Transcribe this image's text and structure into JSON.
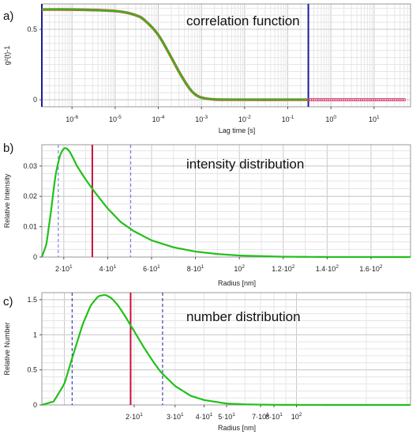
{
  "colors": {
    "curve": "#22c01a",
    "marker_red": "#c8103c",
    "marker_blue": "#1b1b9a",
    "dashed_blue": "#6a6ae0",
    "grid": "#d9d9d9",
    "tail_points": "#e0407a"
  },
  "chart_data": [
    {
      "panel_label": "a)",
      "type": "scatter",
      "title": "correlation function",
      "xlabel": "Lag time [s]",
      "ylabel": "g²(t)-1",
      "x_scale": "log",
      "xlim": [
        2e-07,
        70
      ],
      "ylim": [
        -0.05,
        0.68
      ],
      "x_ticks": [
        {
          "value": 1e-06,
          "label": "10",
          "exp": "-6"
        },
        {
          "value": 1e-05,
          "label": "10",
          "exp": "-5"
        },
        {
          "value": 0.0001,
          "label": "10",
          "exp": "-4"
        },
        {
          "value": 0.001,
          "label": "10",
          "exp": "-3"
        },
        {
          "value": 0.01,
          "label": "10",
          "exp": "-2"
        },
        {
          "value": 0.1,
          "label": "10",
          "exp": "-1"
        },
        {
          "value": 1,
          "label": "10",
          "exp": "0"
        },
        {
          "value": 10,
          "label": "10",
          "exp": "1"
        }
      ],
      "y_ticks": [
        {
          "value": 0,
          "label": "0"
        },
        {
          "value": 0.5,
          "label": "0.5"
        }
      ],
      "series": [
        {
          "x": [
            2e-07,
            1e-06,
            1e-05,
            3e-05,
            5e-05,
            0.0001,
            0.0002,
            0.0003,
            0.0005,
            0.0007,
            0.001,
            0.002,
            0.01,
            0.1,
            0.3
          ],
          "values": [
            0.64,
            0.64,
            0.63,
            0.6,
            0.56,
            0.46,
            0.3,
            0.2,
            0.09,
            0.04,
            0.015,
            0.002,
            0,
            0,
            0
          ]
        },
        {
          "x": [
            0.3,
            1,
            3,
            10,
            50
          ],
          "values": [
            0,
            0,
            0,
            0,
            0
          ]
        }
      ],
      "vertical_markers": [
        {
          "x": 2e-07,
          "color": "marker_blue",
          "style": "solid"
        },
        {
          "x": 0.3,
          "color": "marker_blue",
          "style": "solid"
        }
      ],
      "grid": true
    },
    {
      "panel_label": "b)",
      "type": "line",
      "title": "intensity distribution",
      "xlabel": "Radius [nm]",
      "ylabel": "Relative Intensity",
      "x_scale": "linear",
      "xlim": [
        10,
        178
      ],
      "ylim": [
        0,
        0.037
      ],
      "x_ticks": [
        {
          "value": 20,
          "label": "2·10",
          "exp": "1"
        },
        {
          "value": 40,
          "label": "4·10",
          "exp": "1"
        },
        {
          "value": 60,
          "label": "6·10",
          "exp": "1"
        },
        {
          "value": 80,
          "label": "8·10",
          "exp": "1"
        },
        {
          "value": 100,
          "label": "10",
          "exp": "2"
        },
        {
          "value": 120,
          "label": "1.2·10",
          "exp": "2"
        },
        {
          "value": 140,
          "label": "1.4·10",
          "exp": "2"
        },
        {
          "value": 160,
          "label": "1.6·10",
          "exp": "2"
        }
      ],
      "y_ticks": [
        {
          "value": 0,
          "label": "0"
        },
        {
          "value": 0.01,
          "label": "0.01"
        },
        {
          "value": 0.02,
          "label": "0.02"
        },
        {
          "value": 0.03,
          "label": "0.03"
        }
      ],
      "series": [
        {
          "x": [
            10,
            12,
            14,
            16,
            18,
            20,
            22,
            24,
            26,
            30,
            34,
            40,
            46,
            52,
            60,
            70,
            80,
            90,
            100,
            120,
            140,
            178
          ],
          "values": [
            0,
            0.004,
            0.014,
            0.026,
            0.033,
            0.036,
            0.0355,
            0.033,
            0.03,
            0.0255,
            0.0215,
            0.016,
            0.0115,
            0.0085,
            0.0055,
            0.0032,
            0.0018,
            0.001,
            0.0005,
            0.0001,
            2e-05,
            0
          ]
        }
      ],
      "vertical_markers": [
        {
          "x": 33,
          "color": "marker_red",
          "style": "solid"
        },
        {
          "x": 17.5,
          "color": "dashed_blue",
          "style": "dashed"
        },
        {
          "x": 50.5,
          "color": "dashed_blue",
          "style": "dashed"
        }
      ],
      "grid": true
    },
    {
      "panel_label": "c)",
      "type": "line",
      "title": "number distribution",
      "xlabel": "Radius [nm]",
      "ylabel": "Relative Number",
      "x_scale": "log",
      "xlim": [
        8,
        310
      ],
      "ylim": [
        0,
        1.6
      ],
      "x_ticks": [
        {
          "value": 20,
          "label": "2·10",
          "exp": "1"
        },
        {
          "value": 30,
          "label": "3·10",
          "exp": "1"
        },
        {
          "value": 40,
          "label": "4·10",
          "exp": "1"
        },
        {
          "value": 50,
          "label": "5·10",
          "exp": "1"
        },
        {
          "value": 70,
          "label": "7·10",
          "exp": "1"
        },
        {
          "value": 80,
          "label": "8·10",
          "exp": "1"
        },
        {
          "value": 100,
          "label": "10",
          "exp": "2"
        }
      ],
      "y_ticks": [
        {
          "value": 0,
          "label": "0"
        },
        {
          "value": 0.5,
          "label": "0.5"
        },
        {
          "value": 1,
          "label": "1"
        },
        {
          "value": 1.5,
          "label": "1.5"
        }
      ],
      "series": [
        {
          "x": [
            8,
            9,
            10,
            11,
            12,
            13,
            14,
            15,
            16,
            17,
            18,
            20,
            22,
            24,
            26,
            30,
            35,
            40,
            50,
            60,
            80,
            100,
            150,
            310
          ],
          "values": [
            0,
            0.05,
            0.3,
            0.75,
            1.15,
            1.42,
            1.55,
            1.57,
            1.52,
            1.42,
            1.3,
            1.05,
            0.82,
            0.63,
            0.47,
            0.27,
            0.13,
            0.07,
            0.02,
            0.008,
            0.002,
            0.001,
            0,
            0
          ]
        }
      ],
      "vertical_markers": [
        {
          "x": 19.3,
          "color": "marker_red",
          "style": "solid"
        },
        {
          "x": 10.8,
          "color": "marker_blue",
          "style": "dashed"
        },
        {
          "x": 26.5,
          "color": "marker_blue",
          "style": "dashed"
        }
      ],
      "grid": true
    }
  ]
}
